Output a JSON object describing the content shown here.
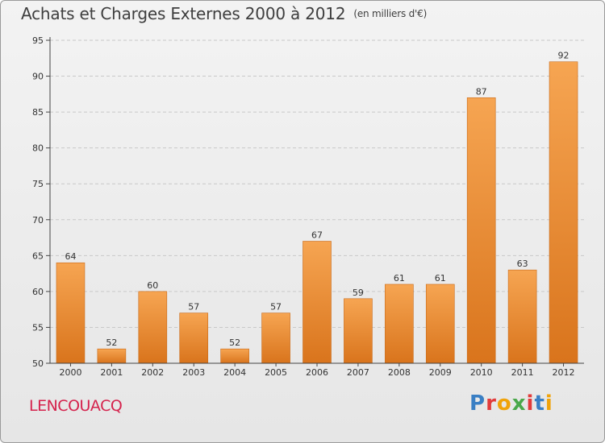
{
  "header": {
    "title": "Achats et Charges Externes 2000 à 2012",
    "unit": "(en milliers d'€)"
  },
  "footer": {
    "commune": "LENCOUACQ",
    "brand": "Proxiti",
    "brand_colors": [
      "#3a7fc4",
      "#e23b3b",
      "#f0a30a",
      "#4aa84a",
      "#e23b3b",
      "#3a7fc4",
      "#f0a30a"
    ]
  },
  "colors": {
    "bar_top": "#f6a552",
    "bar_bottom": "#d9741c",
    "bar_edge": "#c96a18",
    "grid": "#c8c8c8",
    "axis": "#444444",
    "commune": "#d5224c"
  },
  "chart_data": {
    "type": "bar",
    "title": "Achats et Charges Externes 2000 à 2012",
    "subtitle": "(en milliers d'€)",
    "xlabel": "",
    "ylabel": "",
    "categories": [
      "2000",
      "2001",
      "2002",
      "2003",
      "2004",
      "2005",
      "2006",
      "2007",
      "2008",
      "2009",
      "2010",
      "2011",
      "2012"
    ],
    "values": [
      64,
      52,
      60,
      57,
      52,
      57,
      67,
      59,
      61,
      61,
      87,
      63,
      92
    ],
    "ylim": [
      50,
      95
    ],
    "yticks": [
      50,
      55,
      60,
      65,
      70,
      75,
      80,
      85,
      90,
      95
    ],
    "grid": true,
    "data_labels": true
  }
}
